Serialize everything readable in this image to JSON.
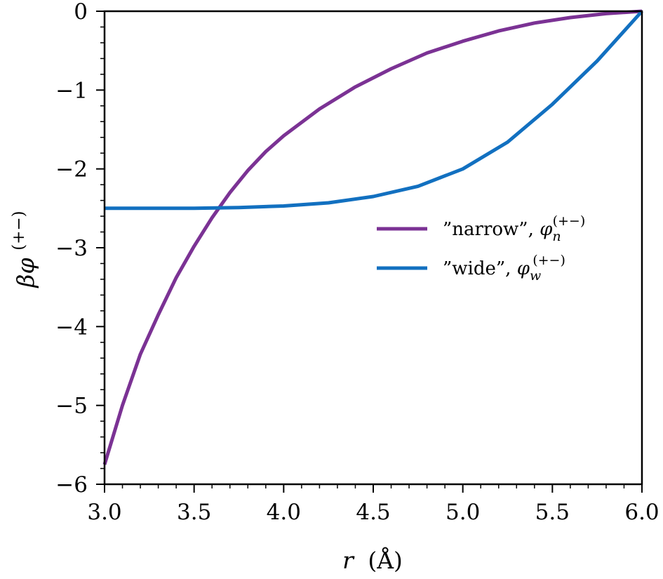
{
  "chart_data": {
    "type": "line",
    "title": "",
    "xlabel": {
      "var": "r",
      "unit": "(Å)"
    },
    "ylabel": {
      "base": "βφ",
      "sup": "(+−)"
    },
    "xlim": [
      3.0,
      6.0
    ],
    "ylim": [
      -6,
      0
    ],
    "xticks": [
      3.0,
      3.5,
      4.0,
      4.5,
      5.0,
      5.5,
      6.0
    ],
    "xtick_labels": [
      "3.0",
      "3.5",
      "4.0",
      "4.5",
      "5.0",
      "5.5",
      "6.0"
    ],
    "yticks": [
      0,
      -1,
      -2,
      -3,
      -4,
      -5,
      -6
    ],
    "ytick_labels": [
      "0",
      "−1",
      "−2",
      "−3",
      "−4",
      "−5",
      "−6"
    ],
    "grid": false,
    "legend_position": "center-right",
    "series": [
      {
        "name": "\"narrow\", φ_n^(+−)",
        "label_text": "”narrow”, ",
        "label_sym": "φ",
        "label_sub": "n",
        "label_sup": "(+−)",
        "color": "#7b3294",
        "x": [
          3.0,
          3.1,
          3.2,
          3.3,
          3.4,
          3.5,
          3.6,
          3.7,
          3.8,
          3.9,
          4.0,
          4.2,
          4.4,
          4.6,
          4.8,
          5.0,
          5.2,
          5.4,
          5.6,
          5.8,
          6.0
        ],
        "y": [
          -5.75,
          -5.0,
          -4.35,
          -3.85,
          -3.38,
          -2.98,
          -2.62,
          -2.3,
          -2.02,
          -1.78,
          -1.58,
          -1.24,
          -0.96,
          -0.73,
          -0.53,
          -0.38,
          -0.25,
          -0.15,
          -0.08,
          -0.03,
          0.0
        ]
      },
      {
        "name": "\"wide\", φ_w^(+−)",
        "label_text": "”wide”, ",
        "label_sym": "φ",
        "label_sub": "w",
        "label_sup": "(+−)",
        "color": "#1270c0",
        "x": [
          3.0,
          3.25,
          3.5,
          3.75,
          4.0,
          4.25,
          4.5,
          4.75,
          5.0,
          5.25,
          5.5,
          5.75,
          6.0
        ],
        "y": [
          -2.5,
          -2.5,
          -2.5,
          -2.49,
          -2.47,
          -2.43,
          -2.35,
          -2.22,
          -2.0,
          -1.66,
          -1.18,
          -0.63,
          0.0
        ]
      }
    ]
  }
}
